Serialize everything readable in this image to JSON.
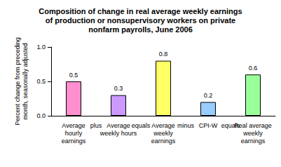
{
  "chart_data": {
    "type": "bar",
    "title": "Composition of change in real average weekly earnings of production or nonsupervisory workers on private nonfarm payrolls, June 2006",
    "y_label": "Percent change from preceding month, seasonally adjusted",
    "categories": [
      "Average hourly earnings",
      "Average weekly hours",
      "Average weekly earnings",
      "CPI-W",
      "Real average weekly earnings"
    ],
    "values": [
      0.5,
      0.3,
      0.8,
      0.2,
      0.6
    ],
    "colors": [
      "#ff8fcf",
      "#cc99ff",
      "#ffff66",
      "#99ccff",
      "#99ff99"
    ],
    "annotations": [
      "plus",
      "equals",
      "minus",
      "equals"
    ],
    "ylim": [
      0,
      1
    ],
    "yticks": [
      {
        "value": 0,
        "label": "0.0"
      },
      {
        "value": 0.5,
        "label": "0.5"
      },
      {
        "value": 1,
        "label": "1.0"
      }
    ],
    "grid": false,
    "data_labels": true
  }
}
